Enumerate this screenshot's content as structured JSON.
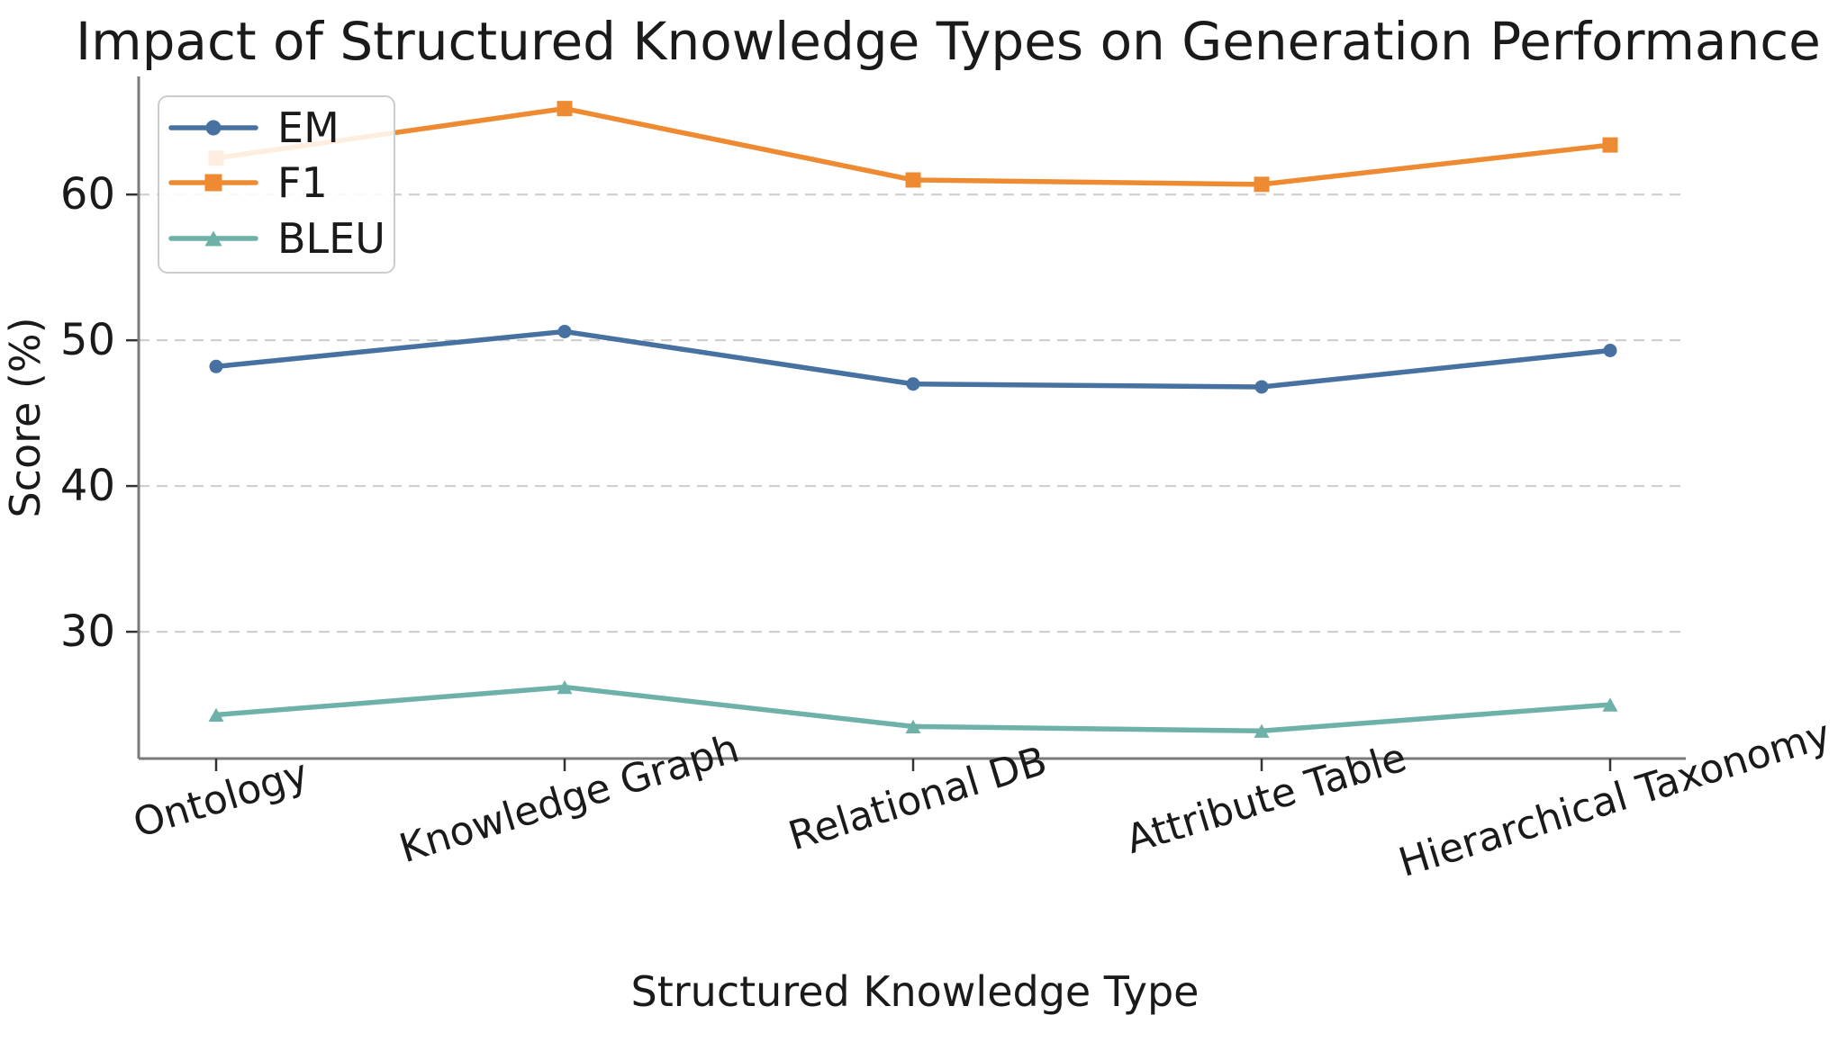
{
  "chart_data": {
    "type": "line",
    "title": "Impact of Structured Knowledge Types on Generation Performance",
    "xlabel": "Structured Knowledge Type",
    "ylabel": "Score (%)",
    "categories": [
      "Ontology",
      "Knowledge Graph",
      "Relational DB",
      "Attribute Table",
      "Hierarchical Taxonomy"
    ],
    "series": [
      {
        "name": "EM",
        "marker": "circle",
        "color": "#4671A0",
        "values": [
          48.2,
          50.6,
          47.0,
          46.8,
          49.3
        ]
      },
      {
        "name": "F1",
        "marker": "square",
        "color": "#EE8B32",
        "values": [
          62.5,
          65.9,
          61.0,
          60.7,
          63.4
        ]
      },
      {
        "name": "BLEU",
        "marker": "triangle",
        "color": "#6EB1A9",
        "values": [
          24.3,
          26.2,
          23.5,
          23.2,
          25.0
        ]
      }
    ],
    "yticks": [
      30,
      40,
      50,
      60
    ],
    "ylim": [
      21.3,
      68.1
    ],
    "xtick_rotation_deg": 17,
    "grid": "horizontal-dashed",
    "legend_position": "upper-left",
    "colors": {
      "grid": "#cfcfcf",
      "spine": "#7a7a7a",
      "tick": "#333333",
      "text": "#1a1a1a",
      "legend_border": "#cccccc",
      "legend_fill": "rgba(255,255,255,0.85)"
    }
  }
}
